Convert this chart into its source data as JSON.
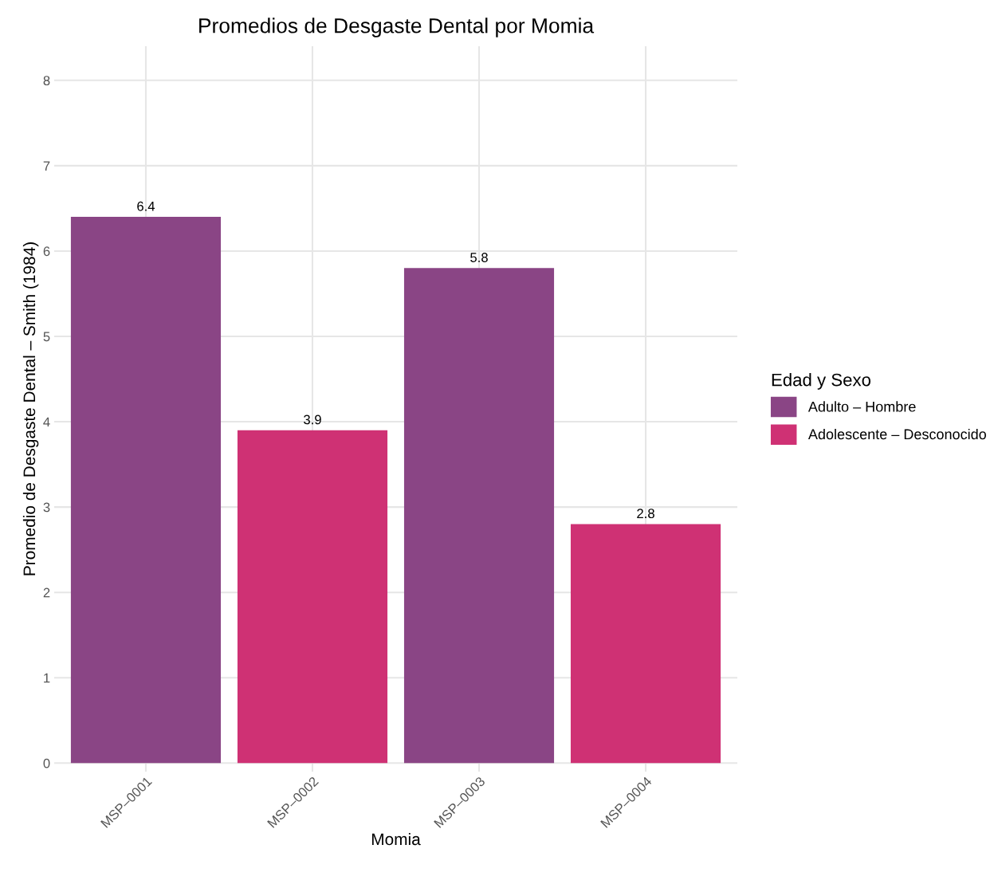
{
  "chart_data": {
    "type": "bar",
    "title": "Promedios de Desgaste Dental por Momia",
    "xlabel": "Momia",
    "ylabel": "Promedio de Desgaste Dental – Smith (1984)",
    "legend_title": "Edad y Sexo",
    "categories": [
      "MSP–0001",
      "MSP–0002",
      "MSP–0003",
      "MSP–0004"
    ],
    "series": [
      {
        "name": "Adulto – Hombre",
        "color": "#8a4585",
        "values": [
          6.4,
          null,
          5.8,
          null
        ]
      },
      {
        "name": "Adolescente – Desconocido",
        "color": "#cf3174",
        "values": [
          null,
          3.9,
          null,
          2.8
        ]
      }
    ],
    "ylim": [
      -0.1,
      8.4
    ],
    "yticks": [
      0,
      1,
      2,
      3,
      4,
      5,
      6,
      7,
      8
    ],
    "grid": true,
    "legend": "right",
    "data_labels": true
  }
}
